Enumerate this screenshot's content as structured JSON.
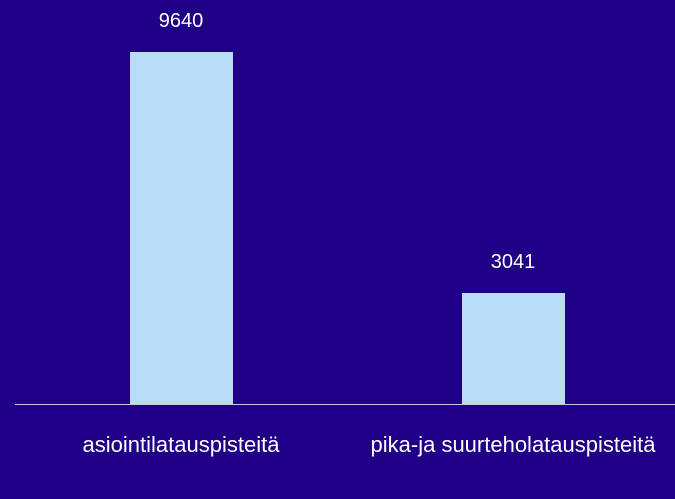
{
  "chart_data": {
    "type": "bar",
    "categories": [
      "asiointilatauspisteitä",
      "pika-ja suurteholatauspisteitä"
    ],
    "values": [
      9640,
      3041
    ],
    "color": "#b9dcf7"
  }
}
